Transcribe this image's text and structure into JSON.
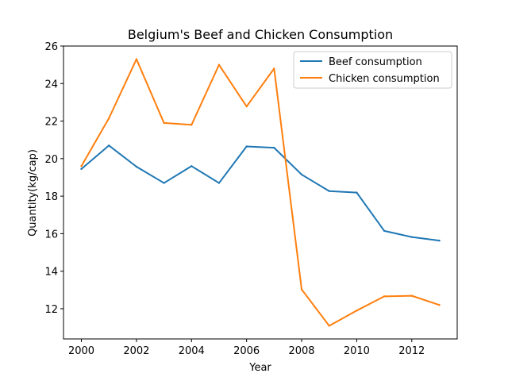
{
  "chart_data": {
    "type": "line",
    "title": "Belgium's Beef and Chicken Consumption",
    "xlabel": "Year",
    "ylabel": "Quantity(kg/cap)",
    "x": [
      2000,
      2001,
      2002,
      2003,
      2004,
      2005,
      2006,
      2007,
      2008,
      2009,
      2010,
      2011,
      2012,
      2013
    ],
    "xlim": [
      1999.35,
      2013.65
    ],
    "ylim": [
      10.39,
      26.0
    ],
    "xticks": [
      2000,
      2002,
      2004,
      2006,
      2008,
      2010,
      2012
    ],
    "yticks": [
      12,
      14,
      16,
      18,
      20,
      22,
      24,
      26
    ],
    "grid": false,
    "legend": "top-right",
    "series": [
      {
        "name": "Beef consumption",
        "color": "#1f77b4",
        "values": [
          19.45,
          20.7,
          19.57,
          18.7,
          19.6,
          18.7,
          20.65,
          20.58,
          19.15,
          18.27,
          18.19,
          16.15,
          15.82,
          15.63
        ]
      },
      {
        "name": "Chicken consumption",
        "color": "#ff7f0e",
        "values": [
          19.6,
          22.15,
          25.3,
          21.9,
          21.8,
          25.0,
          22.78,
          24.8,
          13.03,
          11.09,
          11.9,
          12.66,
          12.69,
          12.2
        ]
      }
    ]
  }
}
